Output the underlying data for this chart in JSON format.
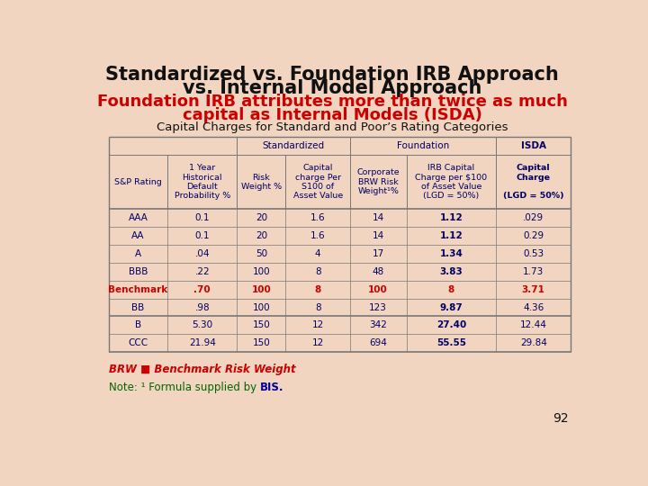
{
  "title_line1": "Standardized vs. Foundation IRB Approach",
  "title_line2": "vs. Internal Model Approach",
  "subtitle_line1": "Foundation IRB attributes more than twice as much",
  "subtitle_line2": "capital as Internal Models (ISDA)",
  "caption": "Capital Charges for Standard and Poor’s Rating Categories",
  "bg_color": "#f2d5c0",
  "title_color": "#111111",
  "subtitle_color": "#cc0000",
  "caption_color": "#111111",
  "rows": [
    [
      "AAA",
      "0.1",
      "20",
      "1.6",
      "14",
      "1.12",
      ".029"
    ],
    [
      "AA",
      "0.1",
      "20",
      "1.6",
      "14",
      "1.12",
      "0.29"
    ],
    [
      "A",
      ".04",
      "50",
      "4",
      "17",
      "1.34",
      "0.53"
    ],
    [
      "BBB",
      ".22",
      "100",
      "8",
      "48",
      "3.83",
      "1.73"
    ],
    [
      "Benchmark",
      ".70",
      "100",
      "8",
      "100",
      "8",
      "3.71"
    ],
    [
      "BB",
      ".98",
      "100",
      "8",
      "123",
      "9.87",
      "4.36"
    ],
    [
      "B",
      "5.30",
      "150",
      "12",
      "342",
      "27.40",
      "12.44"
    ],
    [
      "CCC",
      "21.94",
      "150",
      "12",
      "694",
      "55.55",
      "29.84"
    ]
  ],
  "benchmark_row_idx": 4,
  "brw_note": "BRW ■ Benchmark Risk Weight",
  "page_num": "92",
  "benchmark_color": "#cc0000",
  "header_text_color": "#000066",
  "cell_text_color": "#000066",
  "line_color": "#777777",
  "note_color": "#006600",
  "bis_color": "#000099"
}
